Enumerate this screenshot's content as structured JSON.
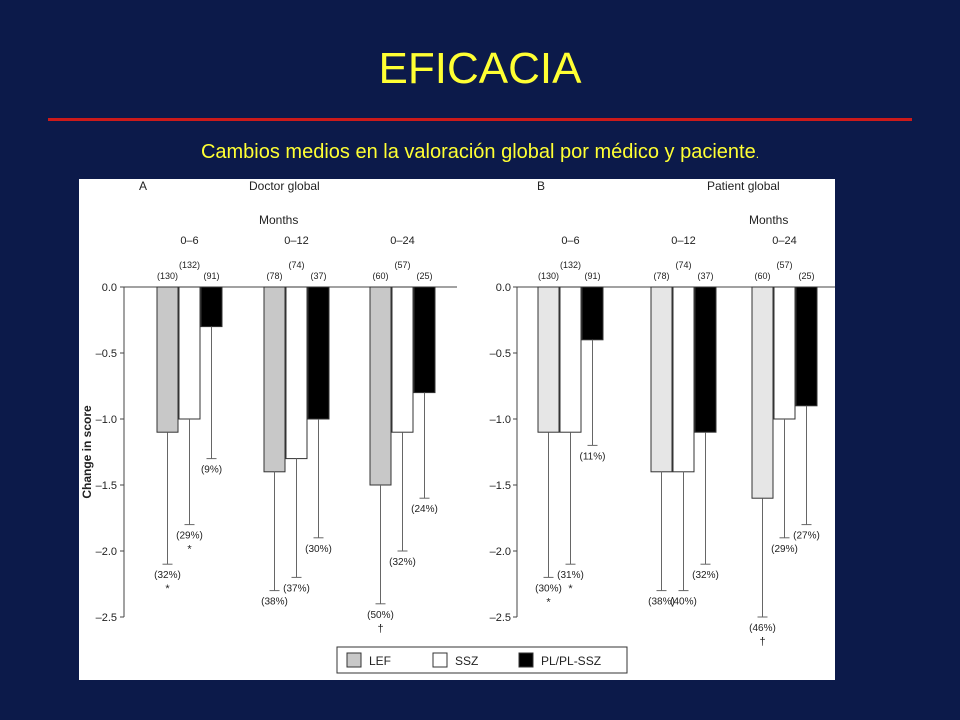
{
  "slide": {
    "title": "EFICACIA",
    "subtitle": "Cambios medios en la valoración global por médico y paciente",
    "subtitle_end": "."
  },
  "colors": {
    "background": "#0c1a4a",
    "title": "#ffff33",
    "rule": "#cc1a1a"
  },
  "chart_data": [
    {
      "type": "bar",
      "panel": "A",
      "title": "Doctor global",
      "group_axis_label": "Months",
      "ylabel": "Change in score",
      "ylim": [
        -2.5,
        0
      ],
      "yticks": [
        "0.0",
        "–0.5",
        "–1.0",
        "–1.5",
        "–2.0",
        "–2.5"
      ],
      "categories": [
        "0–6",
        "0–12",
        "0–24"
      ],
      "series": [
        {
          "name": "LEF",
          "color": "#c8c8c8",
          "values": [
            -1.1,
            -1.4,
            -1.5
          ],
          "n": [
            "(130)",
            "(78)",
            "(60)"
          ],
          "error_low": [
            -2.1,
            -2.3,
            -2.4
          ],
          "pct": [
            "(32%)",
            "(38%)",
            "(50%)"
          ],
          "mark": [
            "*",
            "",
            "†"
          ]
        },
        {
          "name": "SSZ",
          "color": "#ffffff",
          "values": [
            -1.0,
            -1.3,
            -1.1
          ],
          "n": [
            "(132)",
            "(74)",
            "(57)"
          ],
          "error_low": [
            -1.8,
            -2.2,
            -2.0
          ],
          "pct": [
            "(29%)",
            "(37%)",
            "(32%)"
          ],
          "mark": [
            "*",
            "",
            ""
          ]
        },
        {
          "name": "PL/PL-SSZ",
          "color": "#000000",
          "values": [
            -0.3,
            -1.0,
            -0.8
          ],
          "n": [
            "(91)",
            "(37)",
            "(25)"
          ],
          "error_low": [
            -1.3,
            -1.9,
            -1.6
          ],
          "pct": [
            "(9%)",
            "(30%)",
            "(24%)"
          ],
          "mark": [
            "",
            "",
            ""
          ]
        }
      ]
    },
    {
      "type": "bar",
      "panel": "B",
      "title": "Patient global",
      "group_axis_label": "Months",
      "ylabel": "",
      "ylim": [
        -2.5,
        0
      ],
      "yticks": [
        "0.0",
        "–0.5",
        "–1.0",
        "–1.5",
        "–2.0",
        "–2.5"
      ],
      "categories": [
        "0–6",
        "0–12",
        "0–24"
      ],
      "series": [
        {
          "name": "LEF",
          "color": "#e6e6e6",
          "values": [
            -1.1,
            -1.4,
            -1.6
          ],
          "n": [
            "(130)",
            "(78)",
            "(60)"
          ],
          "error_low": [
            -2.2,
            -2.3,
            -2.5
          ],
          "pct": [
            "(30%)",
            "(38%)",
            "(46%)"
          ],
          "mark": [
            "*",
            "",
            "†"
          ]
        },
        {
          "name": "SSZ",
          "color": "#ffffff",
          "values": [
            -1.1,
            -1.4,
            -1.0
          ],
          "n": [
            "(132)",
            "(74)",
            "(57)"
          ],
          "error_low": [
            -2.1,
            -2.3,
            -1.9
          ],
          "pct": [
            "(31%)",
            "(40%)",
            "(29%)"
          ],
          "mark": [
            "*",
            "",
            ""
          ]
        },
        {
          "name": "PL/PL-SSZ",
          "color": "#000000",
          "values": [
            -0.4,
            -1.1,
            -0.9
          ],
          "n": [
            "(91)",
            "(37)",
            "(25)"
          ],
          "error_low": [
            -1.2,
            -2.1,
            -1.8
          ],
          "pct": [
            "(11%)",
            "(32%)",
            "(27%)"
          ],
          "mark": [
            "",
            "",
            ""
          ]
        }
      ]
    }
  ],
  "legend": [
    {
      "label": "LEF",
      "color": "#c8c8c8"
    },
    {
      "label": "SSZ",
      "color": "#ffffff"
    },
    {
      "label": "PL/PL-SSZ",
      "color": "#000000"
    }
  ]
}
